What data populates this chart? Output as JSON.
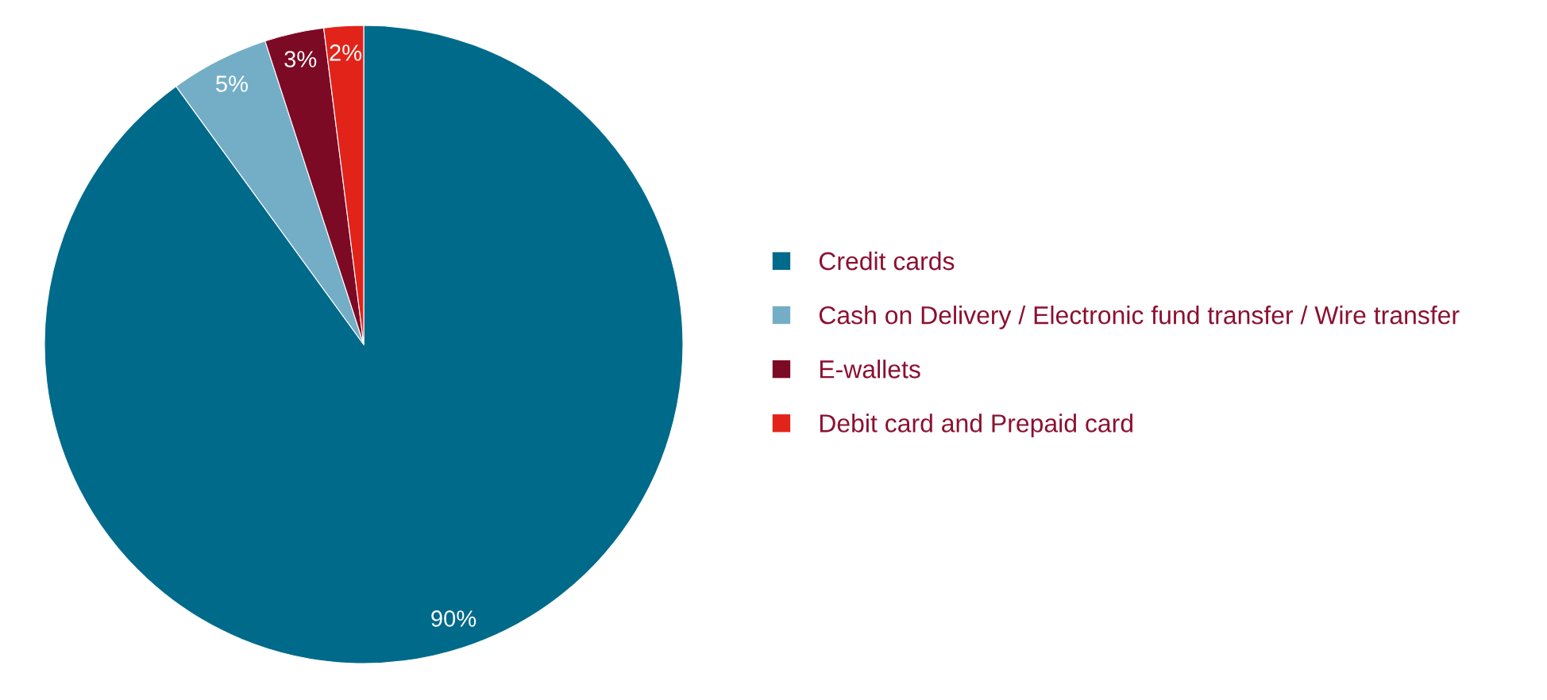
{
  "chart_data": {
    "type": "pie",
    "categories": [
      "Credit cards",
      "Cash on Delivery / Electronic fund transfer / Wire transfer",
      "E-wallets",
      "Debit card and Prepaid card"
    ],
    "values": [
      90,
      5,
      3,
      2
    ],
    "colors": [
      "#006a8a",
      "#74aec6",
      "#7d0a24",
      "#e2231a"
    ],
    "value_labels": [
      "90%",
      "5%",
      "3%",
      "2%"
    ],
    "legend": "right"
  }
}
